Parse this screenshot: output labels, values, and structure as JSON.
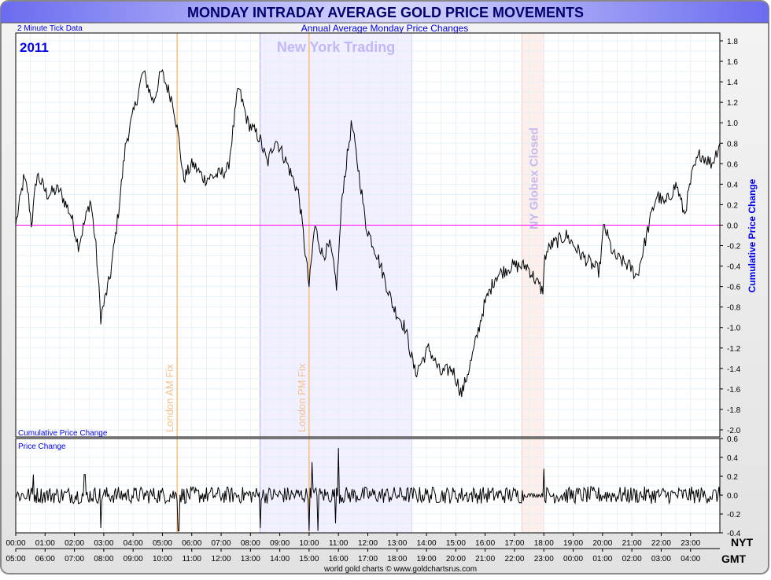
{
  "title": "MONDAY INTRADAY AVERAGE GOLD PRICE MOVEMENTS",
  "subtitle": "Annual Average Monday Price Changes",
  "tick_note": "2 Minute Tick Data",
  "year": "2011",
  "footer": "world gold charts © www.goldchartsrus.com",
  "colors": {
    "line": "#000000",
    "zero": "#ff00ff",
    "fix": "#f5a040",
    "nyband": "#f2f0ff",
    "nyborder": "#9999ee",
    "globex": "#fdf0ec",
    "grid": "#ddeef8",
    "title_text": "#00006e",
    "label_blue": "#0000ee"
  },
  "chart_data": [
    {
      "type": "line",
      "name": "main",
      "ylabel": "Cumulative Price Change",
      "panel_label": "Cumulative Price Change",
      "ylim": [
        -2.0,
        1.8
      ],
      "yticks": [
        "1.8",
        "1.6",
        "1.4",
        "1.2",
        "1.0",
        "0.8",
        "0.6",
        "0.4",
        "0.2",
        "0.0",
        "-0.2",
        "-0.4",
        "-0.6",
        "-0.8",
        "-1.0",
        "-1.2",
        "-1.4",
        "-1.6",
        "-1.8",
        "-2.0"
      ],
      "xlim_hours_nyt": [
        0,
        24
      ],
      "grid": true,
      "annotations": [
        {
          "label": "London AM Fix",
          "hour": 5.5,
          "kind": "line"
        },
        {
          "label": "London PM Fix",
          "hour": 10.0,
          "kind": "line"
        },
        {
          "label": "New York Trading",
          "start": 8.33,
          "end": 13.5,
          "kind": "band"
        },
        {
          "label": "NY Globex Closed",
          "start": 17.25,
          "end": 18.0,
          "kind": "band"
        }
      ],
      "points": [
        [
          0,
          0.0
        ],
        [
          0.27,
          0.45
        ],
        [
          0.4,
          0.35
        ],
        [
          0.54,
          0.0
        ],
        [
          0.72,
          0.5
        ],
        [
          1.07,
          0.3
        ],
        [
          1.47,
          0.35
        ],
        [
          1.88,
          0.1
        ],
        [
          2.14,
          -0.2
        ],
        [
          2.55,
          0.25
        ],
        [
          2.73,
          -0.2
        ],
        [
          2.9,
          -0.9
        ],
        [
          3.22,
          -0.5
        ],
        [
          3.49,
          0.1
        ],
        [
          3.75,
          0.8
        ],
        [
          4.02,
          1.1
        ],
        [
          4.34,
          1.5
        ],
        [
          4.69,
          1.2
        ],
        [
          4.96,
          1.5
        ],
        [
          5.36,
          1.2
        ],
        [
          5.58,
          0.8
        ],
        [
          5.71,
          0.45
        ],
        [
          6.03,
          0.6
        ],
        [
          6.43,
          0.45
        ],
        [
          6.97,
          0.5
        ],
        [
          7.24,
          0.55
        ],
        [
          7.59,
          1.35
        ],
        [
          7.91,
          1.0
        ],
        [
          8.31,
          0.85
        ],
        [
          8.58,
          0.6
        ],
        [
          8.85,
          0.85
        ],
        [
          9.25,
          0.6
        ],
        [
          9.65,
          0.3
        ],
        [
          10.0,
          -0.6
        ],
        [
          10.19,
          0.0
        ],
        [
          10.46,
          -0.3
        ],
        [
          10.72,
          -0.2
        ],
        [
          10.94,
          -0.6
        ],
        [
          11.13,
          0.3
        ],
        [
          11.45,
          1.0
        ],
        [
          11.8,
          0.3
        ],
        [
          11.93,
          0.0
        ],
        [
          12.33,
          -0.3
        ],
        [
          12.87,
          -0.8
        ],
        [
          13.27,
          -1.0
        ],
        [
          13.62,
          -1.45
        ],
        [
          14.08,
          -1.2
        ],
        [
          14.48,
          -1.45
        ],
        [
          14.88,
          -1.4
        ],
        [
          15.2,
          -1.65
        ],
        [
          15.55,
          -1.3
        ],
        [
          15.95,
          -0.8
        ],
        [
          16.35,
          -0.5
        ],
        [
          16.89,
          -0.4
        ],
        [
          17.43,
          -0.4
        ],
        [
          17.96,
          -0.65
        ],
        [
          18.04,
          -0.3
        ],
        [
          18.23,
          -0.2
        ],
        [
          18.77,
          -0.1
        ],
        [
          19.3,
          -0.3
        ],
        [
          19.89,
          -0.45
        ],
        [
          20.05,
          0.0
        ],
        [
          20.38,
          -0.3
        ],
        [
          20.91,
          -0.4
        ],
        [
          21.18,
          -0.5
        ],
        [
          21.58,
          0.0
        ],
        [
          21.85,
          0.3
        ],
        [
          22.12,
          0.2
        ],
        [
          22.52,
          0.4
        ],
        [
          22.79,
          0.1
        ],
        [
          23.06,
          0.5
        ],
        [
          23.32,
          0.7
        ],
        [
          23.73,
          0.6
        ],
        [
          24.0,
          0.8
        ]
      ]
    },
    {
      "type": "bar",
      "name": "price-change",
      "panel_label": "Price Change",
      "ylim": [
        -0.4,
        0.6
      ],
      "yticks": [
        "0.6",
        "0.4",
        "0.2",
        "0.0",
        "-0.2",
        "-0.4"
      ],
      "typical_amplitude": 0.09,
      "spikes": [
        [
          2.9,
          -0.35
        ],
        [
          5.55,
          -0.38
        ],
        [
          8.33,
          -0.35
        ],
        [
          10.0,
          -0.38
        ],
        [
          10.1,
          0.35
        ],
        [
          10.3,
          -0.38
        ],
        [
          11.0,
          0.5
        ],
        [
          10.9,
          -0.3
        ],
        [
          18.0,
          0.28
        ],
        [
          0.6,
          0.22
        ],
        [
          2.35,
          0.22
        ]
      ]
    }
  ],
  "x_axes": {
    "nyt_label": "NYT",
    "gmt_label": "GMT",
    "nyt_ticks": [
      "00:00",
      "01:00",
      "02:00",
      "03:00",
      "04:00",
      "05:00",
      "06:00",
      "07:00",
      "08:00",
      "09:00",
      "10:00",
      "11:00",
      "12:00",
      "13:00",
      "14:00",
      "15:00",
      "16:00",
      "17:00",
      "18:00",
      "19:00",
      "20:00",
      "21:00",
      "22:00",
      "23:00"
    ],
    "gmt_ticks": [
      "05:00",
      "06:00",
      "07:00",
      "08:00",
      "09:00",
      "10:00",
      "11:00",
      "12:00",
      "13:00",
      "14:00",
      "15:00",
      "16:00",
      "17:00",
      "18:00",
      "19:00",
      "20:00",
      "21:00",
      "22:00",
      "23:00",
      "00:00",
      "01:00",
      "02:00",
      "03:00",
      "04:00"
    ]
  }
}
